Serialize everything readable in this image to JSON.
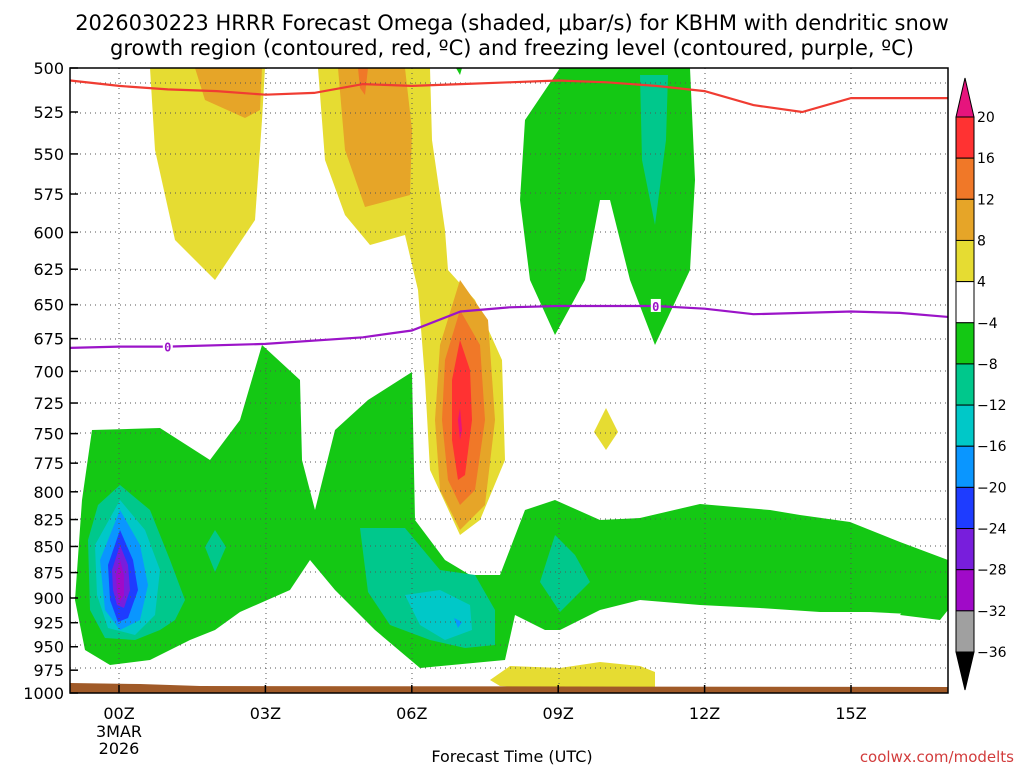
{
  "chart_data": {
    "type": "heatmap",
    "title_line1": "2026030223 HRRR Forecast Omega (shaded, μbar/s) for KBHM with dendritic snow",
    "title_line2": "growth region (contoured, red, ºC) and freezing level (contoured, purple, ºC)",
    "xlabel": "Forecast Time (UTC)",
    "date_label": [
      "3MAR",
      "2026"
    ],
    "x_ticks": [
      {
        "hour": 0,
        "label": "00Z"
      },
      {
        "hour": 3,
        "label": "03Z"
      },
      {
        "hour": 6,
        "label": "06Z"
      },
      {
        "hour": 9,
        "label": "09Z"
      },
      {
        "hour": 12,
        "label": "12Z"
      },
      {
        "hour": 15,
        "label": "15Z"
      }
    ],
    "xlim": [
      -1,
      17
    ],
    "ylim": [
      1000,
      500
    ],
    "y_ticks": [
      500,
      525,
      550,
      575,
      600,
      625,
      650,
      675,
      700,
      725,
      750,
      775,
      800,
      825,
      850,
      875,
      900,
      925,
      950,
      975,
      1000
    ],
    "colorbar": {
      "labels": [
        "20",
        "16",
        "12",
        "8",
        "4",
        "−4",
        "−8",
        "−12",
        "−16",
        "−20",
        "−24",
        "−28",
        "−32",
        "−36"
      ],
      "levels": [
        {
          "range": ">20",
          "color": "#e6147d"
        },
        {
          "range": "16 to 20",
          "color": "#ff3232"
        },
        {
          "range": "12 to 16",
          "color": "#f07828"
        },
        {
          "range": "8 to 12",
          "color": "#e6a528"
        },
        {
          "range": "4 to 8",
          "color": "#e6dc32"
        },
        {
          "range": "-4 to 4",
          "color": "#ffffff"
        },
        {
          "range": "-8 to -4",
          "color": "#14c814"
        },
        {
          "range": "-12 to -8",
          "color": "#00c88c"
        },
        {
          "range": "-16 to -12",
          "color": "#00c8c8"
        },
        {
          "range": "-20 to -16",
          "color": "#0a96ff"
        },
        {
          "range": "-24 to -20",
          "color": "#1e3cff"
        },
        {
          "range": "-28 to -24",
          "color": "#781edc"
        },
        {
          "range": "-32 to -28",
          "color": "#a00ac8"
        },
        {
          "range": "-36 to -32",
          "color": "#a0a0a0"
        },
        {
          "range": "<-36",
          "color": "#000000"
        }
      ]
    },
    "series": [
      {
        "name": "Freezing level (0 ºC, purple)",
        "color": "#9b14c8",
        "label": "0",
        "x": [
          -1,
          0,
          1,
          3,
          5,
          6,
          7,
          8,
          9,
          10,
          11,
          12,
          13,
          14,
          15,
          16,
          17
        ],
        "y": [
          682,
          681,
          681,
          679,
          674,
          669,
          655,
          652,
          651,
          651,
          651,
          653,
          657,
          656,
          655,
          656,
          659
        ]
      },
      {
        "name": "Dendritic growth region boundary (red)",
        "color": "#f03c32",
        "x": [
          -1,
          0,
          1,
          2,
          3,
          4,
          5,
          6,
          7,
          8,
          9,
          10,
          11,
          12,
          13,
          14,
          15,
          16,
          17
        ],
        "y": [
          507,
          510,
          512,
          513,
          515,
          514,
          509,
          510,
          509,
          508,
          507,
          508,
          510,
          513,
          521,
          525,
          517,
          517,
          517
        ]
      }
    ],
    "omega_areas": [
      {
        "label": "Upward motion max (−28 to −32)",
        "hour": 0,
        "pressure": 880,
        "value": -30
      },
      {
        "label": "Downward motion max (16 to 20)",
        "hour": 7,
        "pressure": 740,
        "value": 18
      }
    ],
    "ground": {
      "color": "#a05a28"
    }
  },
  "credit": "coolwx.com/modelts"
}
